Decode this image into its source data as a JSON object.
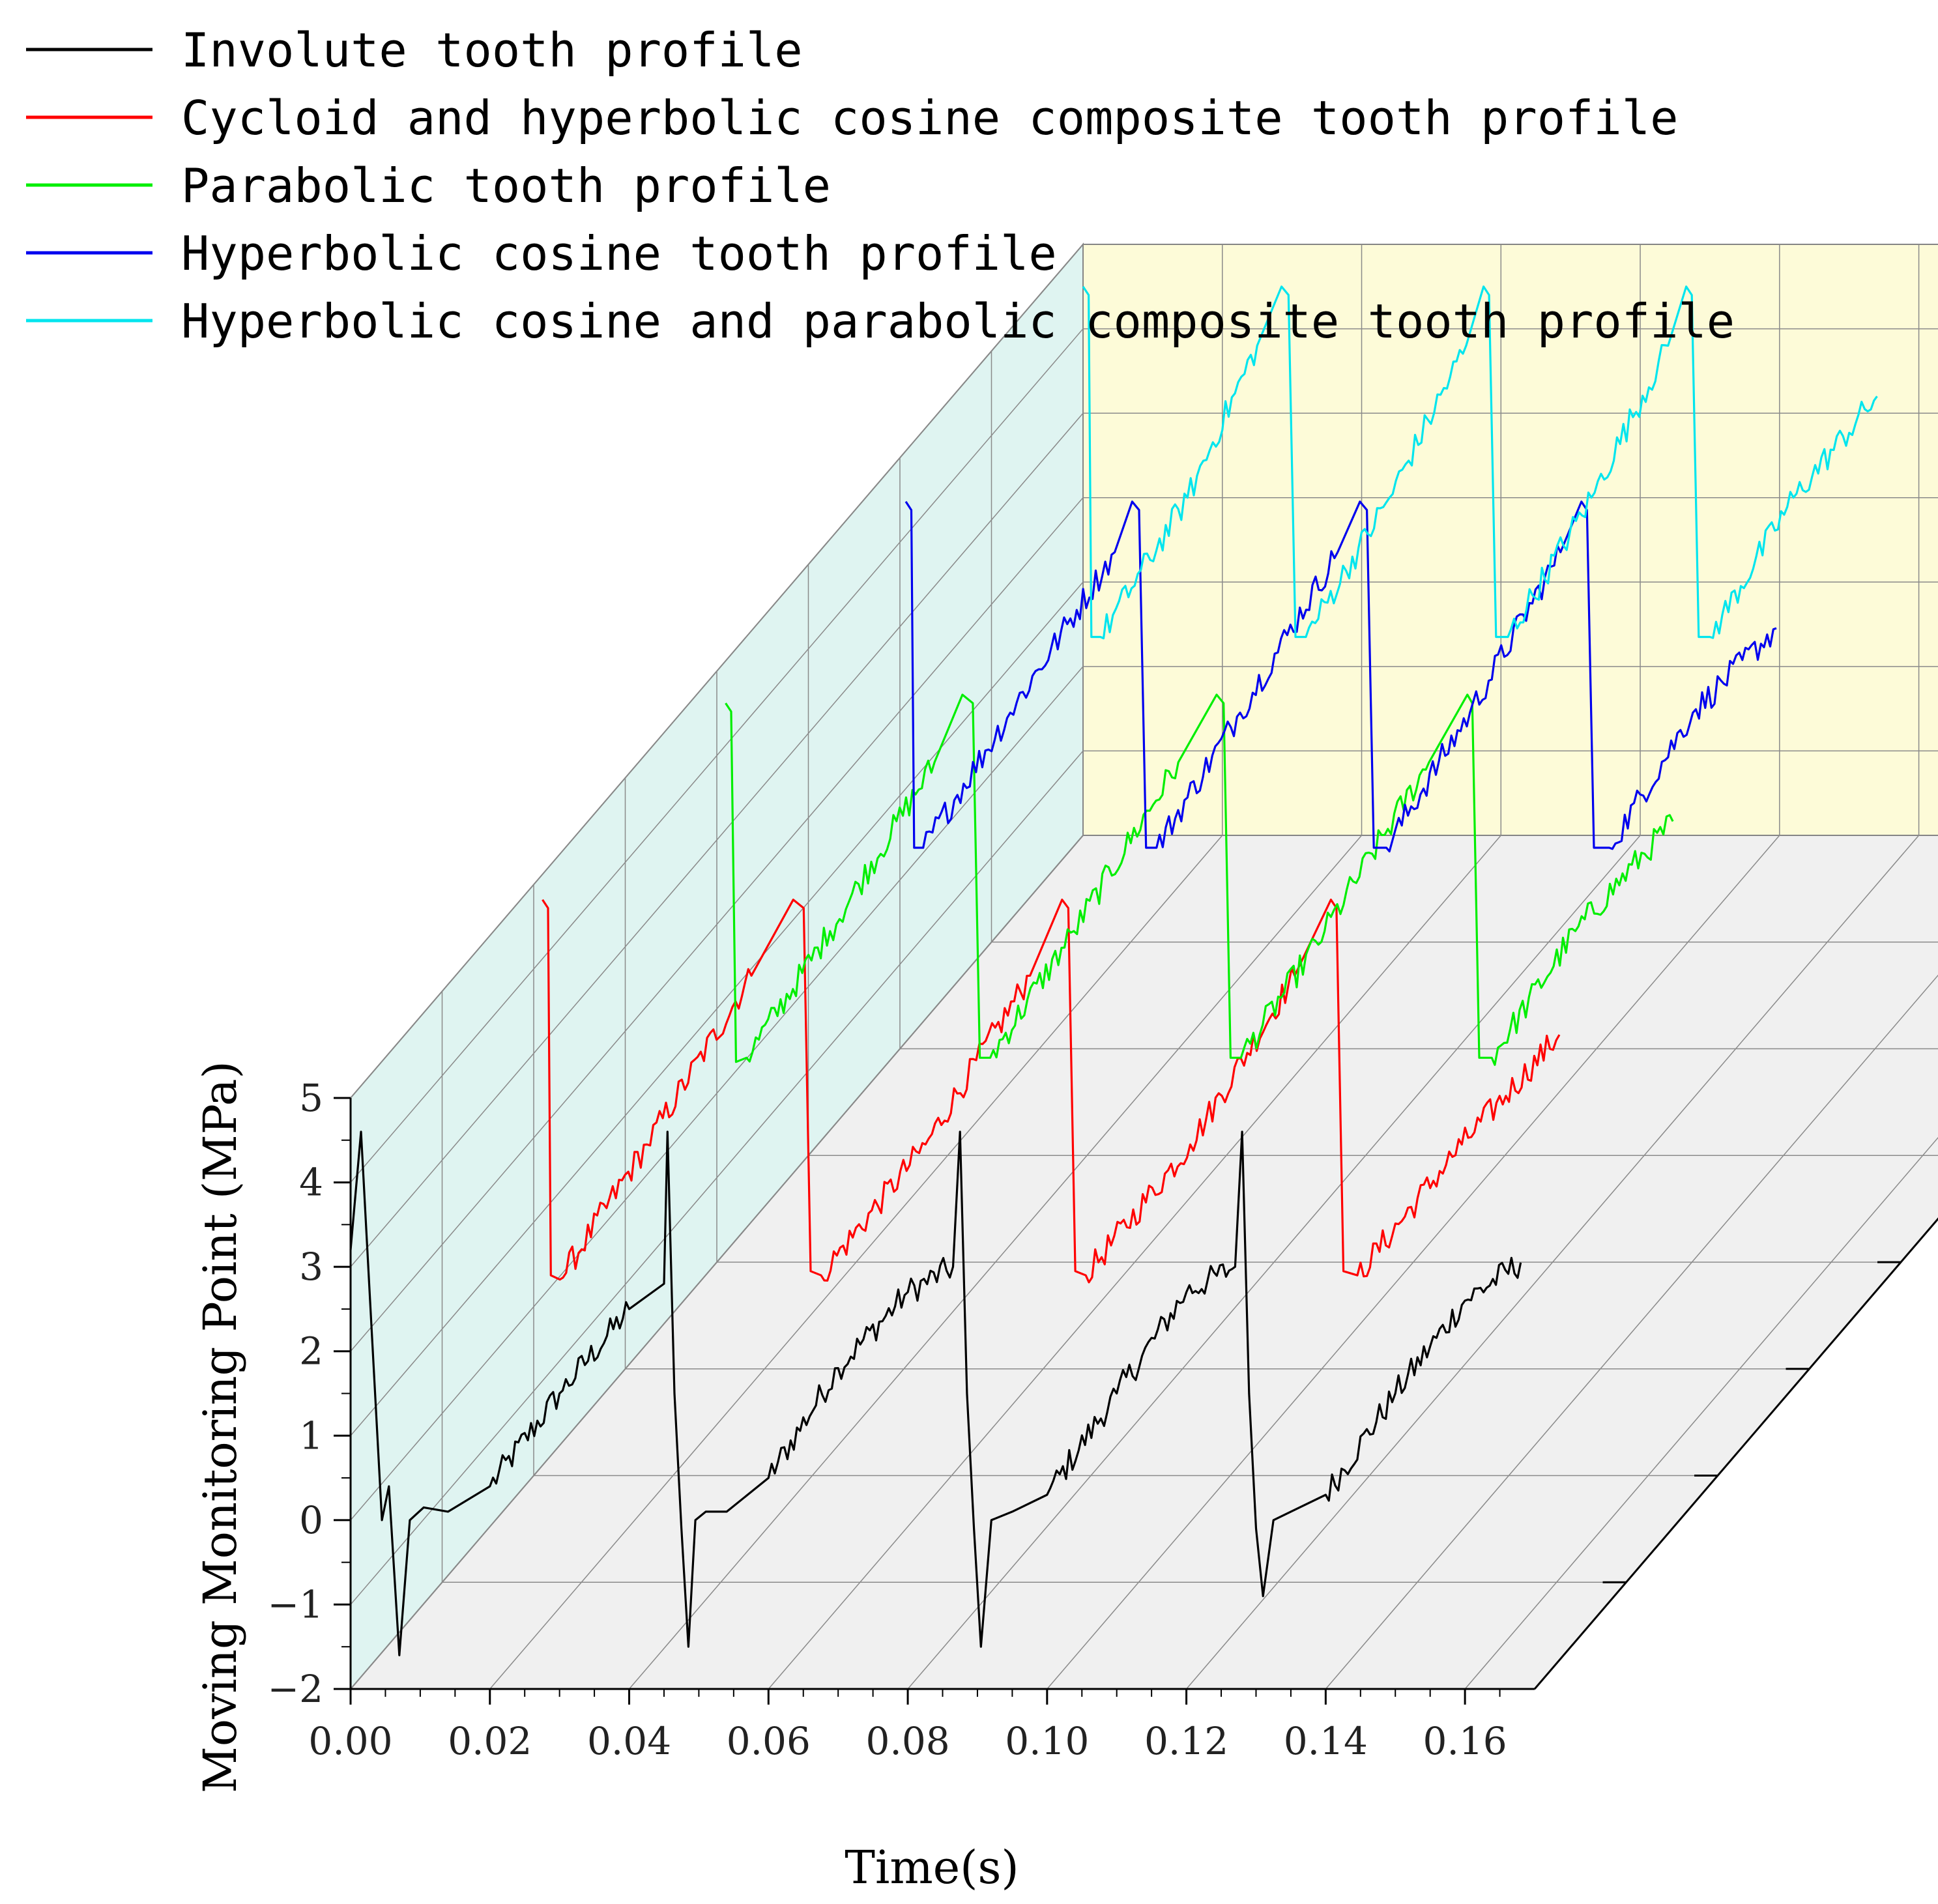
{
  "chart_data": {
    "type": "line",
    "variant": "3d-waterfall",
    "xlabel": "Time(s)",
    "ylabel": "Moving Monitoring Point (MPa)",
    "xlim": [
      0.0,
      0.17
    ],
    "ylim": [
      -2,
      5
    ],
    "x_ticks": [
      "0.00",
      "0.02",
      "0.04",
      "0.06",
      "0.08",
      "0.10",
      "0.12",
      "0.14",
      "0.16"
    ],
    "y_ticks": [
      "5",
      "4",
      "3",
      "2",
      "1",
      "0",
      "−1",
      "−2"
    ],
    "legend_position": "top-left",
    "grid": true,
    "wall_colors": {
      "back": "#fdfbd8",
      "side": "#dff4f1",
      "floor": "#f0f0f0"
    },
    "series": [
      {
        "name": "Involute tooth profile",
        "color": "#000000",
        "x": [
          0.0,
          0.0015,
          0.0028,
          0.0045,
          0.0055,
          0.007,
          0.0085,
          0.0105,
          0.014,
          0.02,
          0.03,
          0.04,
          0.045,
          0.0455,
          0.0465,
          0.0475,
          0.0485,
          0.0495,
          0.051,
          0.054,
          0.06,
          0.07,
          0.08,
          0.0865,
          0.0875,
          0.0885,
          0.0895,
          0.0905,
          0.092,
          0.095,
          0.1,
          0.11,
          0.12,
          0.127,
          0.128,
          0.129,
          0.13,
          0.131,
          0.1325,
          0.135,
          0.14,
          0.15,
          0.16,
          0.168
        ],
        "y": [
          3.2,
          4.6,
          2.6,
          0.0,
          0.4,
          -1.6,
          0.0,
          0.15,
          0.1,
          0.4,
          1.5,
          2.5,
          2.8,
          4.6,
          1.5,
          -0.1,
          -1.5,
          0.0,
          0.1,
          0.1,
          0.5,
          1.8,
          2.7,
          3.0,
          4.6,
          1.5,
          -0.1,
          -1.5,
          0.0,
          0.1,
          0.3,
          1.5,
          2.7,
          3.0,
          4.6,
          1.5,
          -0.1,
          -0.9,
          0.0,
          0.1,
          0.3,
          1.5,
          2.6,
          3.05
        ]
      },
      {
        "name": "Cycloid and hyperbolic cosine composite tooth profile",
        "color": "#ff0000",
        "x": [
          0.0,
          0.0008,
          0.0012,
          0.0025,
          0.015,
          0.03,
          0.036,
          0.0375,
          0.0385,
          0.04,
          0.055,
          0.07,
          0.0746,
          0.0755,
          0.0765,
          0.078,
          0.093,
          0.108,
          0.1132,
          0.114,
          0.115,
          0.117,
          0.132,
          0.146
        ],
        "y": [
          4.7,
          4.6,
          0.25,
          0.2,
          1.8,
          3.8,
          4.7,
          4.6,
          0.3,
          0.25,
          1.8,
          3.8,
          4.7,
          4.6,
          0.3,
          0.25,
          1.8,
          3.8,
          4.7,
          4.6,
          0.3,
          0.25,
          1.8,
          3.1
        ]
      },
      {
        "name": "Parabolic tooth profile",
        "color": "#00ee00",
        "x": [
          0.0,
          0.0008,
          0.0015,
          0.003,
          0.015,
          0.03,
          0.034,
          0.0355,
          0.0365,
          0.038,
          0.05,
          0.065,
          0.0705,
          0.0715,
          0.0725,
          0.074,
          0.086,
          0.101,
          0.1065,
          0.1072,
          0.1082,
          0.11,
          0.122,
          0.136
        ],
        "y": [
          4.5,
          4.4,
          0.25,
          0.3,
          1.8,
          3.8,
          4.6,
          4.5,
          0.3,
          0.3,
          1.8,
          3.8,
          4.6,
          4.5,
          0.3,
          0.3,
          1.8,
          3.8,
          4.6,
          4.5,
          0.3,
          0.3,
          1.8,
          3.1
        ]
      },
      {
        "name": "Hyperbolic cosine tooth profile",
        "color": "#0000ee",
        "x": [
          0.0,
          0.0008,
          0.0012,
          0.0025,
          0.015,
          0.03,
          0.0325,
          0.0335,
          0.0345,
          0.036,
          0.048,
          0.062,
          0.0652,
          0.0662,
          0.0672,
          0.069,
          0.081,
          0.094,
          0.097,
          0.0978,
          0.0988,
          0.101,
          0.113,
          0.125
        ],
        "y": [
          4.4,
          4.3,
          0.3,
          0.3,
          1.9,
          3.8,
          4.4,
          4.3,
          0.3,
          0.3,
          1.9,
          3.8,
          4.4,
          4.3,
          0.3,
          0.3,
          1.9,
          3.8,
          4.4,
          4.3,
          0.3,
          0.3,
          1.9,
          2.9
        ]
      },
      {
        "name": "Hyperbolic cosine and parabolic composite tooth profile",
        "color": "#00e5ee",
        "x": [
          0.0,
          0.0008,
          0.0012,
          0.0025,
          0.015,
          0.025,
          0.0285,
          0.0295,
          0.0305,
          0.032,
          0.044,
          0.055,
          0.0575,
          0.0583,
          0.0593,
          0.061,
          0.073,
          0.084,
          0.0866,
          0.0874,
          0.0884,
          0.09,
          0.102,
          0.114
        ],
        "y": [
          4.5,
          4.4,
          0.35,
          0.35,
          2.0,
          3.8,
          4.5,
          4.4,
          0.35,
          0.35,
          2.0,
          3.8,
          4.5,
          4.4,
          0.35,
          0.35,
          2.0,
          3.8,
          4.5,
          4.4,
          0.35,
          0.35,
          2.0,
          3.2
        ]
      }
    ]
  }
}
